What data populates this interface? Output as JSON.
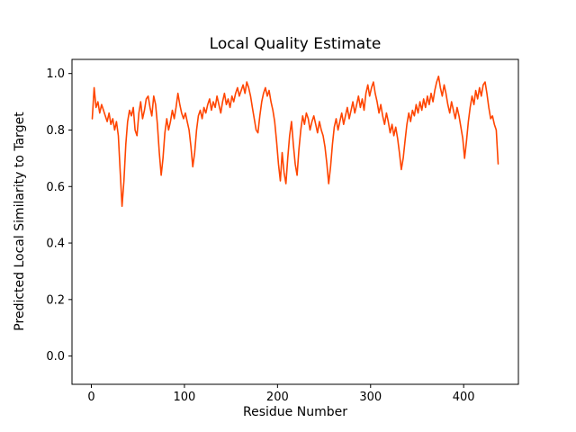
{
  "figure": {
    "title": "Local Quality Estimate",
    "xlabel": "Residue Number",
    "ylabel": "Predicted Local Similarity to Target"
  },
  "chart_data": {
    "type": "line",
    "title": "Local Quality Estimate",
    "xlabel": "Residue Number",
    "ylabel": "Predicted Local Similarity to Target",
    "line_color": "#FF4500",
    "axis_color": "#000000",
    "background": "#FFFFFF",
    "grid": false,
    "legend": null,
    "xlim": [
      -20.8,
      458.8
    ],
    "ylim": [
      -0.1,
      1.05
    ],
    "xticks": [
      0,
      100,
      200,
      300,
      400
    ],
    "yticks": [
      0.0,
      0.2,
      0.4,
      0.6,
      0.8,
      1.0
    ],
    "x_start": 1,
    "x_step": 2,
    "values": [
      0.84,
      0.95,
      0.88,
      0.9,
      0.86,
      0.89,
      0.87,
      0.85,
      0.83,
      0.86,
      0.82,
      0.84,
      0.8,
      0.83,
      0.78,
      0.65,
      0.53,
      0.62,
      0.75,
      0.83,
      0.87,
      0.85,
      0.88,
      0.8,
      0.78,
      0.86,
      0.9,
      0.84,
      0.87,
      0.91,
      0.92,
      0.88,
      0.85,
      0.92,
      0.89,
      0.82,
      0.72,
      0.64,
      0.7,
      0.79,
      0.84,
      0.8,
      0.83,
      0.87,
      0.84,
      0.88,
      0.93,
      0.89,
      0.86,
      0.84,
      0.86,
      0.83,
      0.8,
      0.74,
      0.67,
      0.72,
      0.8,
      0.85,
      0.87,
      0.84,
      0.88,
      0.86,
      0.89,
      0.91,
      0.87,
      0.9,
      0.88,
      0.92,
      0.89,
      0.86,
      0.9,
      0.93,
      0.89,
      0.91,
      0.88,
      0.92,
      0.9,
      0.93,
      0.95,
      0.92,
      0.94,
      0.96,
      0.93,
      0.97,
      0.95,
      0.92,
      0.88,
      0.84,
      0.8,
      0.79,
      0.85,
      0.9,
      0.93,
      0.95,
      0.92,
      0.94,
      0.9,
      0.87,
      0.83,
      0.76,
      0.68,
      0.62,
      0.72,
      0.65,
      0.61,
      0.7,
      0.78,
      0.83,
      0.75,
      0.68,
      0.64,
      0.73,
      0.8,
      0.85,
      0.82,
      0.86,
      0.84,
      0.8,
      0.83,
      0.85,
      0.82,
      0.79,
      0.83,
      0.8,
      0.78,
      0.74,
      0.68,
      0.61,
      0.67,
      0.75,
      0.81,
      0.84,
      0.8,
      0.83,
      0.86,
      0.82,
      0.85,
      0.88,
      0.84,
      0.87,
      0.9,
      0.86,
      0.89,
      0.92,
      0.88,
      0.91,
      0.87,
      0.93,
      0.96,
      0.92,
      0.95,
      0.97,
      0.93,
      0.9,
      0.86,
      0.89,
      0.85,
      0.82,
      0.86,
      0.83,
      0.79,
      0.82,
      0.78,
      0.81,
      0.77,
      0.72,
      0.66,
      0.7,
      0.76,
      0.82,
      0.86,
      0.83,
      0.87,
      0.85,
      0.89,
      0.86,
      0.9,
      0.87,
      0.91,
      0.88,
      0.92,
      0.89,
      0.93,
      0.9,
      0.94,
      0.97,
      0.99,
      0.95,
      0.92,
      0.96,
      0.93,
      0.89,
      0.86,
      0.9,
      0.87,
      0.84,
      0.88,
      0.85,
      0.81,
      0.77,
      0.7,
      0.76,
      0.83,
      0.88,
      0.92,
      0.89,
      0.94,
      0.91,
      0.95,
      0.92,
      0.96,
      0.97,
      0.93,
      0.88,
      0.84,
      0.85,
      0.82,
      0.8,
      0.68
    ]
  }
}
